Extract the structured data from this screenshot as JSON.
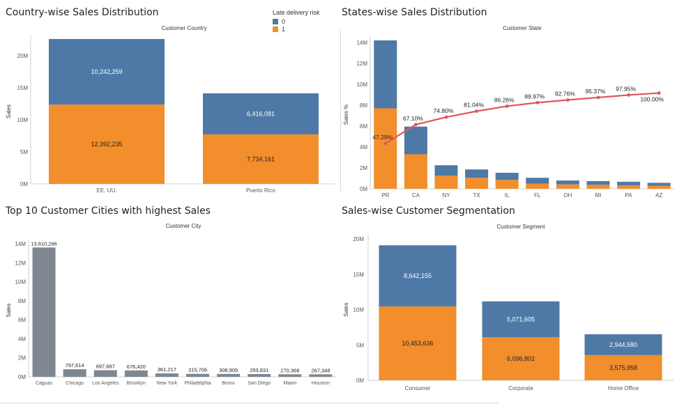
{
  "colors": {
    "blue": "#4e79a7",
    "orange": "#f28e2b",
    "gray": "#7f8891",
    "pareto": "#e15759",
    "axis": "#cccccc",
    "text": "#333333"
  },
  "legend": {
    "title": "Late delivery risk",
    "items": [
      {
        "label": "0",
        "color": "#4e79a7"
      },
      {
        "label": "1",
        "color": "#f28e2b"
      }
    ]
  },
  "panels": {
    "country": {
      "title": "Country-wise Sales Distribution"
    },
    "states": {
      "title": "States-wise Sales Distribution"
    },
    "cities": {
      "title": "Top 10 Customer Cities with highest Sales"
    },
    "segment": {
      "title": "Sales-wise Customer Segmentation"
    }
  },
  "chart_data": [
    {
      "id": "country",
      "type": "bar",
      "stacked": true,
      "title": "Country-wise Sales Distribution",
      "header": "Customer Country",
      "ylabel": "Sales",
      "ylim": [
        0,
        22634494
      ],
      "ticks": [
        0,
        5000000,
        10000000,
        15000000,
        20000000
      ],
      "tick_labels": [
        "0M",
        "5M",
        "10M",
        "15M",
        "20M"
      ],
      "categories": [
        "EE. UU.",
        "Puerto Rico"
      ],
      "series": [
        {
          "name": "1",
          "color": "#f28e2b",
          "values": [
            12392235,
            7734161
          ],
          "labels": [
            "12,392,235",
            "7,734,161"
          ]
        },
        {
          "name": "0",
          "color": "#4e79a7",
          "values": [
            10242259,
            6416081
          ],
          "labels": [
            "10,242,259",
            "6,416,081"
          ]
        }
      ]
    },
    {
      "id": "states",
      "type": "bar",
      "stacked": true,
      "title": "States-wise Sales Distribution",
      "header": "Customer State",
      "ylabel": "Sales %",
      "ylim": [
        0,
        14200000
      ],
      "ticks": [
        0,
        2000000,
        4000000,
        6000000,
        8000000,
        10000000,
        12000000,
        14000000
      ],
      "tick_labels": [
        "0M",
        "2M",
        "4M",
        "6M",
        "8M",
        "10M",
        "12M",
        "14M"
      ],
      "categories": [
        "PR",
        "CA",
        "NY",
        "TX",
        "IL",
        "FL",
        "OH",
        "MI",
        "PA",
        "AZ"
      ],
      "series": [
        {
          "name": "1",
          "color": "#f28e2b",
          "values": [
            7700000,
            3300000,
            1250000,
            1050000,
            850000,
            500000,
            420000,
            380000,
            330000,
            280000
          ]
        },
        {
          "name": "0",
          "color": "#4e79a7",
          "values": [
            6500000,
            2650000,
            1000000,
            800000,
            680000,
            550000,
            370000,
            350000,
            340000,
            290000
          ]
        }
      ],
      "pareto": {
        "ylim": [
          0,
          1.55
        ],
        "values": [
          0.4729,
          0.671,
          0.748,
          0.8104,
          0.8626,
          0.8997,
          0.9276,
          0.9537,
          0.9795,
          1.0
        ],
        "labels": [
          "47.29%",
          "67.10%",
          "74.80%",
          "81.04%",
          "86.26%",
          "89.97%",
          "92.76%",
          "95.37%",
          "97.95%",
          "100.00%"
        ]
      }
    },
    {
      "id": "cities",
      "type": "bar",
      "title": "Top 10 Customer Cities with highest Sales",
      "header": "Customer City",
      "ylabel": "Sales",
      "ylim": [
        0,
        14000000
      ],
      "ticks": [
        0,
        2000000,
        4000000,
        6000000,
        8000000,
        10000000,
        12000000,
        14000000
      ],
      "tick_labels": [
        "0M",
        "2M",
        "4M",
        "6M",
        "8M",
        "10M",
        "12M",
        "14M"
      ],
      "categories": [
        "Caguas",
        "Chicago",
        "Los Angeles",
        "Brooklyn",
        "New York",
        "Philadelphia",
        "Bronx",
        "San Diego",
        "Miami",
        "Houston"
      ],
      "values": [
        13610266,
        797614,
        697887,
        676420,
        361217,
        315706,
        308905,
        293831,
        270368,
        267348
      ],
      "labels": [
        "13,610,266",
        "797,614",
        "697,887",
        "676,420",
        "361,217",
        "315,706",
        "308,905",
        "293,831",
        "270,368",
        "267,348"
      ]
    },
    {
      "id": "segment",
      "type": "bar",
      "stacked": true,
      "title": "Sales-wise Customer Segmentation",
      "header": "Customer Segment",
      "ylabel": "Sales",
      "ylim": [
        0,
        20000000
      ],
      "ticks": [
        0,
        5000000,
        10000000,
        15000000,
        20000000
      ],
      "tick_labels": [
        "0M",
        "5M",
        "10M",
        "15M",
        "20M"
      ],
      "categories": [
        "Consumer",
        "Corporate",
        "Home Office"
      ],
      "series": [
        {
          "name": "1",
          "color": "#f28e2b",
          "values": [
            10453636,
            6096802,
            3575958
          ],
          "labels": [
            "10,453,636",
            "6,096,802",
            "3,575,958"
          ]
        },
        {
          "name": "0",
          "color": "#4e79a7",
          "values": [
            8642155,
            5071605,
            2944580
          ],
          "labels": [
            "8,642,155",
            "5,071,605",
            "2,944,580"
          ]
        }
      ]
    }
  ]
}
